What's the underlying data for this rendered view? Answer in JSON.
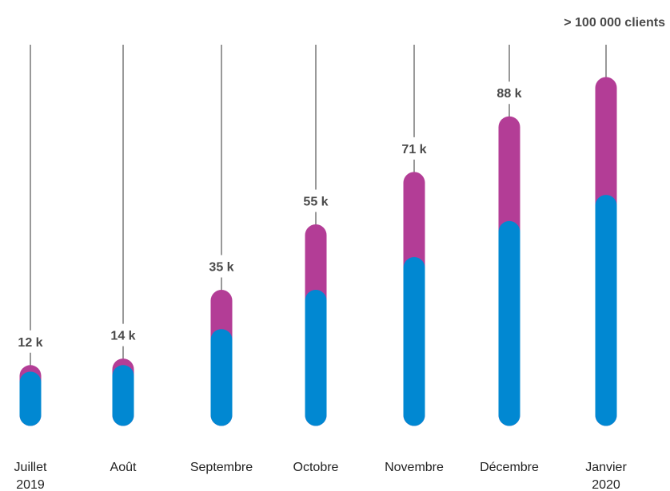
{
  "chart_data": {
    "type": "bar",
    "stacked": true,
    "categories": [
      [
        "Juillet",
        "2019"
      ],
      [
        "Août"
      ],
      [
        "Septembre"
      ],
      [
        "Octobre"
      ],
      [
        "Novembre"
      ],
      [
        "Décembre"
      ],
      [
        "Janvier",
        "2020"
      ]
    ],
    "value_labels": [
      "12 k",
      "14 k",
      "35 k",
      "55 k",
      "71 k",
      "88 k",
      "> 100 000 clients"
    ],
    "totals": [
      12000,
      14000,
      35000,
      55000,
      71000,
      88000,
      100000
    ],
    "series": [
      {
        "values": [
          10000,
          12000,
          23000,
          35000,
          45000,
          56000,
          64000
        ]
      },
      {
        "values": [
          2000,
          2000,
          12000,
          20000,
          26000,
          32000,
          36000
        ]
      }
    ],
    "colors": [
      "#0188d2",
      "#b33d96"
    ],
    "leader_color": "#333333",
    "ylim": [
      0,
      100000
    ],
    "grid": false,
    "legend": "none"
  }
}
